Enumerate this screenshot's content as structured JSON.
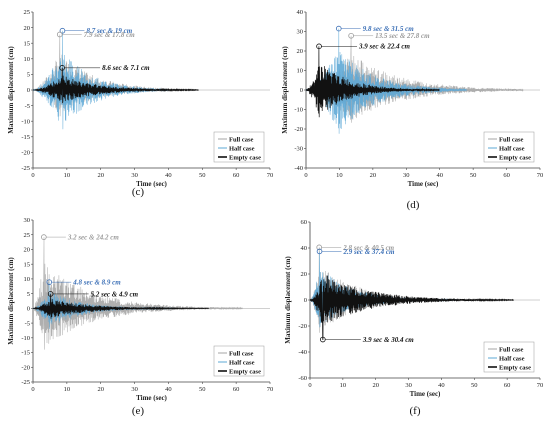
{
  "colors": {
    "full": "#a6a6a6",
    "half": "#5ea8d6",
    "empty": "#111111",
    "half_label": "#3b6fb6",
    "full_label": "#9a9a9a"
  },
  "chart_data": [
    {
      "id": "c",
      "type": "line",
      "panel_label": "(c)",
      "xlabel": "Time (sec)",
      "ylabel": "Maximum displacement (cm)",
      "xlim": [
        0,
        70
      ],
      "ylim": [
        -25,
        25
      ],
      "xticks": [
        0,
        10,
        20,
        30,
        40,
        50,
        60,
        70
      ],
      "yticks": [
        25,
        20,
        15,
        10,
        5,
        0,
        -5,
        -10,
        -15,
        -20,
        -25
      ],
      "legend_position": "bottom-right",
      "series": [
        {
          "key": "full",
          "name": "Full case",
          "duration": 48,
          "peak_t": 7.9,
          "peak_v": 17.8,
          "neg_v": -12
        },
        {
          "key": "half",
          "name": "Half case",
          "duration": 40,
          "peak_t": 8.7,
          "peak_v": 19,
          "neg_v": -18
        },
        {
          "key": "empty",
          "name": "Empty case",
          "duration": 49,
          "peak_t": 8.6,
          "peak_v": 7.1,
          "neg_v": -6
        }
      ],
      "annotations": [
        {
          "key": "half",
          "text": "8.7 sec & 19 cm",
          "t": 8.7,
          "v": 19
        },
        {
          "key": "full",
          "text": "7.9 sec & 17.8 cm",
          "t": 7.9,
          "v": 17.8
        },
        {
          "key": "empty",
          "text": "8.6 sec & 7.1 cm",
          "t": 8.6,
          "v": 7.1
        }
      ]
    },
    {
      "id": "d",
      "type": "line",
      "panel_label": "(d)",
      "xlabel": "Time (sec)",
      "ylabel": "Maximum displacement (cm)",
      "xlim": [
        0,
        70
      ],
      "ylim": [
        -40,
        40
      ],
      "xticks": [
        0,
        10,
        20,
        30,
        40,
        50,
        60,
        70
      ],
      "yticks": [
        40,
        30,
        20,
        10,
        0,
        -10,
        -20,
        -30,
        -40
      ],
      "legend_position": "bottom-right",
      "series": [
        {
          "key": "full",
          "name": "Full case",
          "duration": 65,
          "peak_t": 13.5,
          "peak_v": 27.8,
          "neg_v": -24
        },
        {
          "key": "half",
          "name": "Half case",
          "duration": 48,
          "peak_t": 9.8,
          "peak_v": 31.5,
          "neg_v": -32
        },
        {
          "key": "empty",
          "name": "Empty case",
          "duration": 40,
          "peak_t": 3.9,
          "peak_v": 22.4,
          "neg_v": -20
        }
      ],
      "annotations": [
        {
          "key": "half",
          "text": "9.8 sec & 31.5 cm",
          "t": 9.8,
          "v": 31.5
        },
        {
          "key": "full",
          "text": "13.5 sec & 27.8 cm",
          "t": 13.5,
          "v": 27.8
        },
        {
          "key": "empty",
          "text": "3.9 sec & 22.4 cm",
          "t": 3.9,
          "v": 22.4
        }
      ]
    },
    {
      "id": "e",
      "type": "line",
      "panel_label": "(e)",
      "xlabel": "Time (sec)",
      "ylabel": "Maximum displacement (cm)",
      "xlim": [
        0,
        70
      ],
      "ylim": [
        -25,
        30
      ],
      "xticks": [
        0,
        10,
        20,
        30,
        40,
        50,
        60,
        70
      ],
      "yticks": [
        30,
        25,
        20,
        15,
        10,
        5,
        0,
        -5,
        -10,
        -15,
        -20,
        -25
      ],
      "legend_position": "bottom-right",
      "series": [
        {
          "key": "full",
          "name": "Full case",
          "duration": 62,
          "peak_t": 3.2,
          "peak_v": 24.2,
          "neg_v": -20
        },
        {
          "key": "half",
          "name": "Half case",
          "duration": 42,
          "peak_t": 4.8,
          "peak_v": 8.9,
          "neg_v": -10
        },
        {
          "key": "empty",
          "name": "Empty case",
          "duration": 52,
          "peak_t": 5.2,
          "peak_v": 4.9,
          "neg_v": -5
        }
      ],
      "annotations": [
        {
          "key": "full",
          "text": "3.2 sec & 24.2 cm",
          "t": 3.2,
          "v": 24.2
        },
        {
          "key": "half",
          "text": "4.8 sec & 8.9 cm",
          "t": 4.8,
          "v": 8.9
        },
        {
          "key": "empty",
          "text": "5.2 sec & 4.9 cm",
          "t": 5.2,
          "v": 4.9
        }
      ]
    },
    {
      "id": "f",
      "type": "line",
      "panel_label": "(f)",
      "xlabel": "Time (sec)",
      "ylabel": "Maximum displacement (cm)",
      "xlim": [
        0,
        70
      ],
      "ylim": [
        -60,
        60
      ],
      "xticks": [
        0,
        10,
        20,
        30,
        40,
        50,
        60,
        70
      ],
      "yticks": [
        60,
        40,
        20,
        0,
        -20,
        -40,
        -60
      ],
      "legend_position": "bottom-right",
      "series": [
        {
          "key": "full",
          "name": "Full case",
          "duration": 55,
          "peak_t": 2.8,
          "peak_v": 40.5,
          "neg_v": -36
        },
        {
          "key": "half",
          "name": "Half case",
          "duration": 45,
          "peak_t": 2.9,
          "peak_v": 37.4,
          "neg_v": -30
        },
        {
          "key": "empty",
          "name": "Empty case",
          "duration": 62,
          "peak_t": 3.9,
          "peak_v": -30.4,
          "neg_v": -30.4
        }
      ],
      "annotations": [
        {
          "key": "full",
          "text": "2.8 sec & 40.5 cm",
          "t": 2.8,
          "v": 40.5
        },
        {
          "key": "half",
          "text": "2.9 sec & 37.4 cm",
          "t": 2.9,
          "v": 37.4
        },
        {
          "key": "empty",
          "text": "3.9 sec & 30.4 cm",
          "t": 3.9,
          "v": -30.4
        }
      ]
    }
  ]
}
